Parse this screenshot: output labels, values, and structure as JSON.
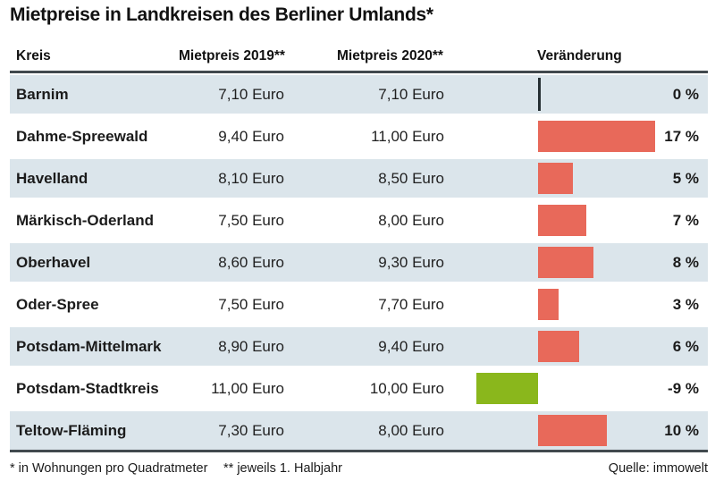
{
  "title": "Mietpreise in Landkreisen des Berliner Umlands*",
  "columns": {
    "kreis": "Kreis",
    "p2019": "Mietpreis 2019**",
    "p2020": "Mietpreis 2020**",
    "change": "Veränderung"
  },
  "rows": [
    {
      "name": "Barnim",
      "p2019": "7,10 Euro",
      "p2020": "7,10 Euro",
      "change_label": "0 %",
      "change_pct": 0
    },
    {
      "name": "Dahme-Spreewald",
      "p2019": "9,40 Euro",
      "p2020": "11,00 Euro",
      "change_label": "17 %",
      "change_pct": 17
    },
    {
      "name": "Havelland",
      "p2019": "8,10 Euro",
      "p2020": "8,50 Euro",
      "change_label": "5 %",
      "change_pct": 5
    },
    {
      "name": "Märkisch-Oderland",
      "p2019": "7,50 Euro",
      "p2020": "8,00 Euro",
      "change_label": "7 %",
      "change_pct": 7
    },
    {
      "name": "Oberhavel",
      "p2019": "8,60 Euro",
      "p2020": "9,30 Euro",
      "change_label": "8 %",
      "change_pct": 8
    },
    {
      "name": "Oder-Spree",
      "p2019": "7,50 Euro",
      "p2020": "7,70 Euro",
      "change_label": "3 %",
      "change_pct": 3
    },
    {
      "name": "Potsdam-Mittelmark",
      "p2019": "8,90 Euro",
      "p2020": "9,40 Euro",
      "change_label": "6 %",
      "change_pct": 6
    },
    {
      "name": "Potsdam-Stadtkreis",
      "p2019": "11,00 Euro",
      "p2020": "10,00 Euro",
      "change_label": "-9 %",
      "change_pct": -9
    },
    {
      "name": "Teltow-Fläming",
      "p2019": "7,30 Euro",
      "p2020": "8,00 Euro",
      "change_label": "10 %",
      "change_pct": 10
    }
  ],
  "footnotes": {
    "note1": "* in Wohnungen pro Quadratmeter",
    "note2": "** jeweils 1. Halbjahr",
    "source": "Quelle: immowelt"
  },
  "colors": {
    "positive_bar": "#e8695a",
    "negative_bar": "#8ab71c",
    "zero_line": "#262f33",
    "row_alt_bg": "#dbe5eb",
    "rule": "#41494e"
  },
  "chart_data": {
    "type": "bar",
    "title": "Mietpreise in Landkreisen des Berliner Umlands*",
    "categories": [
      "Barnim",
      "Dahme-Spreewald",
      "Havelland",
      "Märkisch-Oderland",
      "Oberhavel",
      "Oder-Spree",
      "Potsdam-Mittelmark",
      "Potsdam-Stadtkreis",
      "Teltow-Fläming"
    ],
    "series": [
      {
        "name": "Mietpreis 2019 (Euro)",
        "values": [
          7.1,
          9.4,
          8.1,
          7.5,
          8.6,
          7.5,
          8.9,
          11.0,
          7.3
        ]
      },
      {
        "name": "Mietpreis 2020 (Euro)",
        "values": [
          7.1,
          11.0,
          8.5,
          8.0,
          9.3,
          7.7,
          9.4,
          10.0,
          8.0
        ]
      },
      {
        "name": "Veränderung (%)",
        "values": [
          0,
          17,
          5,
          7,
          8,
          3,
          6,
          -9,
          10
        ]
      }
    ],
    "xlabel": "",
    "ylabel": "Veränderung (%)",
    "ylim": [
      -9,
      17
    ],
    "grid": false,
    "legend_position": "none",
    "notes": "Horizontale Balken zeigen die prozentuale Veränderung; positive Werte rot, negative Werte grün; Nulllinie bei Barnim"
  }
}
